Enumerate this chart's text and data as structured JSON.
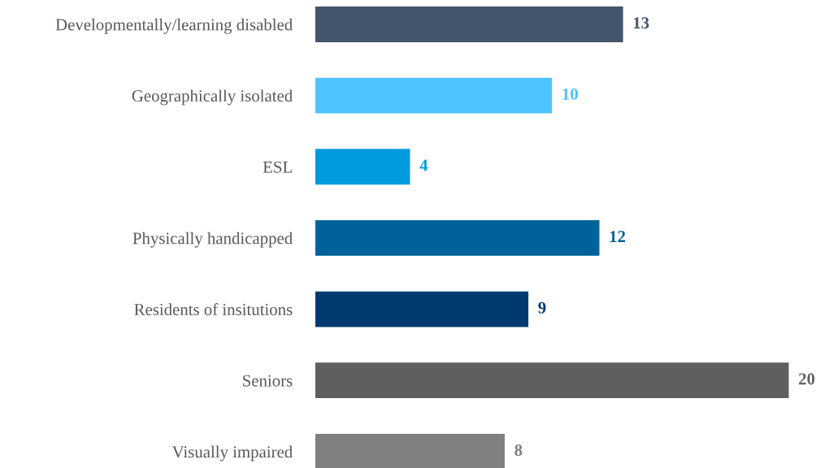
{
  "chart_data": {
    "type": "bar",
    "orientation": "horizontal",
    "categories": [
      "Developmentally/learning disabled",
      "Geographically isolated",
      "ESL",
      "Physically handicapped",
      "Residents of insitutions",
      "Seniors",
      "Visually impaired"
    ],
    "values": [
      13,
      10,
      4,
      12,
      9,
      20,
      8
    ],
    "colors": [
      "#44546a",
      "#4dc3ff",
      "#009ade",
      "#00629b",
      "#003a70",
      "#5f5f5f",
      "#808080"
    ],
    "data_labels": true,
    "grid": false,
    "legend": false
  }
}
